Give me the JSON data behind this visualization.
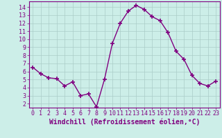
{
  "x": [
    0,
    1,
    2,
    3,
    4,
    5,
    6,
    7,
    8,
    9,
    10,
    11,
    12,
    13,
    14,
    15,
    16,
    17,
    18,
    19,
    20,
    21,
    22,
    23
  ],
  "y": [
    6.5,
    5.7,
    5.2,
    5.1,
    4.2,
    4.7,
    3.0,
    3.2,
    1.6,
    5.0,
    9.5,
    12.0,
    13.5,
    14.2,
    13.7,
    12.8,
    12.3,
    10.8,
    8.5,
    7.5,
    5.5,
    4.5,
    4.2,
    4.8
  ],
  "line_color": "#800080",
  "marker": "+",
  "marker_size": 4,
  "bg_color": "#cceee8",
  "grid_color": "#aaccc8",
  "xlabel": "Windchill (Refroidissement éolien,°C)",
  "ylim": [
    1.5,
    14.7
  ],
  "xlim": [
    -0.5,
    23.5
  ],
  "yticks": [
    2,
    3,
    4,
    5,
    6,
    7,
    8,
    9,
    10,
    11,
    12,
    13,
    14
  ],
  "xticks": [
    0,
    1,
    2,
    3,
    4,
    5,
    6,
    7,
    8,
    9,
    10,
    11,
    12,
    13,
    14,
    15,
    16,
    17,
    18,
    19,
    20,
    21,
    22,
    23
  ],
  "tick_color": "#800080",
  "label_color": "#800080",
  "spine_color": "#800080",
  "xlabel_fontsize": 7,
  "tick_fontsize": 6,
  "lw": 1.0
}
